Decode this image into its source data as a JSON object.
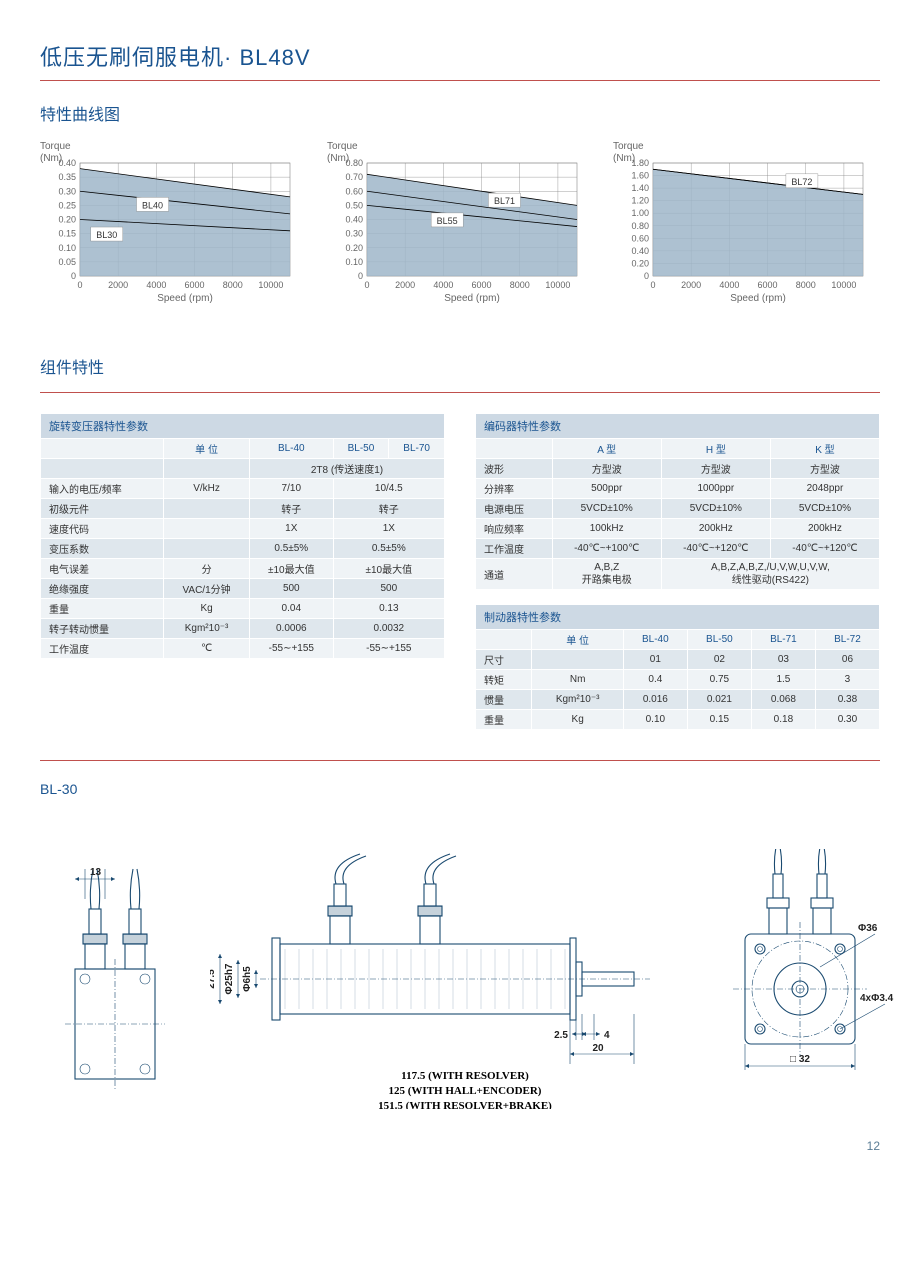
{
  "page": {
    "title": "低压无刷伺服电机· BL48V",
    "section_curves": "特性曲线图",
    "section_components": "组件特性",
    "bl30_title": "BL-30",
    "page_number": "12"
  },
  "charts": {
    "axis_y_label": "Torque\n(Nm)",
    "axis_x_label": "Speed (rpm)",
    "x_ticks": [
      0,
      2000,
      4000,
      6000,
      8000,
      10000
    ],
    "chart1": {
      "y_max": 0.4,
      "y_step": 0.05,
      "y_ticks": [
        "0",
        "0.05",
        "0.10",
        "0.15",
        "0.20",
        "0.25",
        "0.30",
        "0.35",
        "0.40"
      ],
      "area_top": [
        [
          0,
          0.38
        ],
        [
          11000,
          0.28
        ]
      ],
      "lines": [
        {
          "label": "BL40",
          "y_label": 0.25,
          "x_label": 3800,
          "pts": [
            [
              0,
              0.3
            ],
            [
              11000,
              0.22
            ]
          ]
        },
        {
          "label": "BL30",
          "y_label": 0.145,
          "x_label": 1400,
          "pts": [
            [
              0,
              0.2
            ],
            [
              11000,
              0.16
            ]
          ]
        }
      ]
    },
    "chart2": {
      "y_max": 0.8,
      "y_step": 0.1,
      "y_ticks": [
        "0",
        "0.10",
        "0.20",
        "0.30",
        "0.40",
        "0.50",
        "0.60",
        "0.70",
        "0.80"
      ],
      "area_top": [
        [
          0,
          0.72
        ],
        [
          11000,
          0.5
        ]
      ],
      "lines": [
        {
          "label": "BL71",
          "y_label": 0.53,
          "x_label": 7200,
          "pts": [
            [
              0,
              0.6
            ],
            [
              11000,
              0.4
            ]
          ]
        },
        {
          "label": "BL55",
          "y_label": 0.39,
          "x_label": 4200,
          "pts": [
            [
              0,
              0.5
            ],
            [
              11000,
              0.35
            ]
          ]
        }
      ]
    },
    "chart3": {
      "y_max": 1.8,
      "y_step": 0.2,
      "y_ticks": [
        "0",
        "0.20",
        "0.40",
        "0.60",
        "0.80",
        "1.00",
        "1.20",
        "1.40",
        "1.60",
        "1.80"
      ],
      "area_top": [
        [
          0,
          1.7
        ],
        [
          11000,
          1.3
        ]
      ],
      "lines": [
        {
          "label": "BL72",
          "y_label": 1.5,
          "x_label": 7800,
          "pts": [
            [
              0,
              1.7
            ],
            [
              11000,
              1.3
            ]
          ]
        }
      ]
    }
  },
  "table_resolver": {
    "title": "旋转变压器特性参数",
    "unit_label": "单 位",
    "col_heads": [
      "BL-40",
      "BL-50",
      "BL-70"
    ],
    "merged_row": "2T8 (传送速度1)",
    "rows": [
      [
        "输入的电压/频率",
        "V/kHz",
        "7/10",
        "10/4.5"
      ],
      [
        "初级元件",
        "",
        "转子",
        "转子"
      ],
      [
        "速度代码",
        "",
        "1X",
        "1X"
      ],
      [
        "变压系数",
        "",
        "0.5±5%",
        "0.5±5%"
      ],
      [
        "电气误差",
        "分",
        "±10最大值",
        "±10最大值"
      ],
      [
        "绝缘强度",
        "VAC/1分钟",
        "500",
        "500"
      ],
      [
        "重量",
        "Kg",
        "0.04",
        "0.13"
      ],
      [
        "转子转动惯量",
        "Kgm²10⁻³",
        "0.0006",
        "0.0032"
      ],
      [
        "工作温度",
        "℃",
        "-55∼+155",
        "-55∼+155"
      ]
    ]
  },
  "table_encoder": {
    "title": "编码器特性参数",
    "col_heads": [
      "A 型",
      "H 型",
      "K 型"
    ],
    "rows": [
      [
        "波形",
        "方型波",
        "方型波",
        "方型波"
      ],
      [
        "分辨率",
        "500ppr",
        "1000ppr",
        "2048ppr"
      ],
      [
        "电源电压",
        "5VCD±10%",
        "5VCD±10%",
        "5VCD±10%"
      ],
      [
        "响应频率",
        "100kHz",
        "200kHz",
        "200kHz"
      ],
      [
        "工作温度",
        "-40℃~+100℃",
        "-40℃~+120℃",
        "-40℃~+120℃"
      ]
    ],
    "channel_label": "通道",
    "channel_col1": "A,B,Z\n开路集电极",
    "channel_col2": "A,B,Z,A,B,Z,/U,V,W,U,V,W,\n线性驱动(RS422)"
  },
  "table_brake": {
    "title": "制动器特性参数",
    "unit_label": "单 位",
    "col_heads": [
      "BL-40",
      "BL-50",
      "BL-71",
      "BL-72"
    ],
    "rows": [
      [
        "尺寸",
        "",
        "01",
        "02",
        "03",
        "06"
      ],
      [
        "转矩",
        "Nm",
        "0.4",
        "0.75",
        "1.5",
        "3"
      ],
      [
        "惯量",
        "Kgm²10⁻³",
        "0.016",
        "0.021",
        "0.068",
        "0.38"
      ],
      [
        "重量",
        "Kg",
        "0.10",
        "0.15",
        "0.18",
        "0.30"
      ]
    ]
  },
  "drawing": {
    "dim_13": "13",
    "dim_27_5": "27.5",
    "dim_d25h7": "Φ25h7",
    "dim_d6h5": "Φ6h5",
    "dim_2_5": "2.5",
    "dim_4": "4",
    "dim_20": "20",
    "len1": "117.5 (WITH RESOLVER)",
    "len2": "125 (WITH HALL+ENCODER)",
    "len3": "151.5 (WITH RESOLVER+BRAKE)",
    "dim_d36": "Φ36",
    "dim_4x_d3_4": "4xΦ3.4",
    "dim_sq32": "□ 32"
  }
}
